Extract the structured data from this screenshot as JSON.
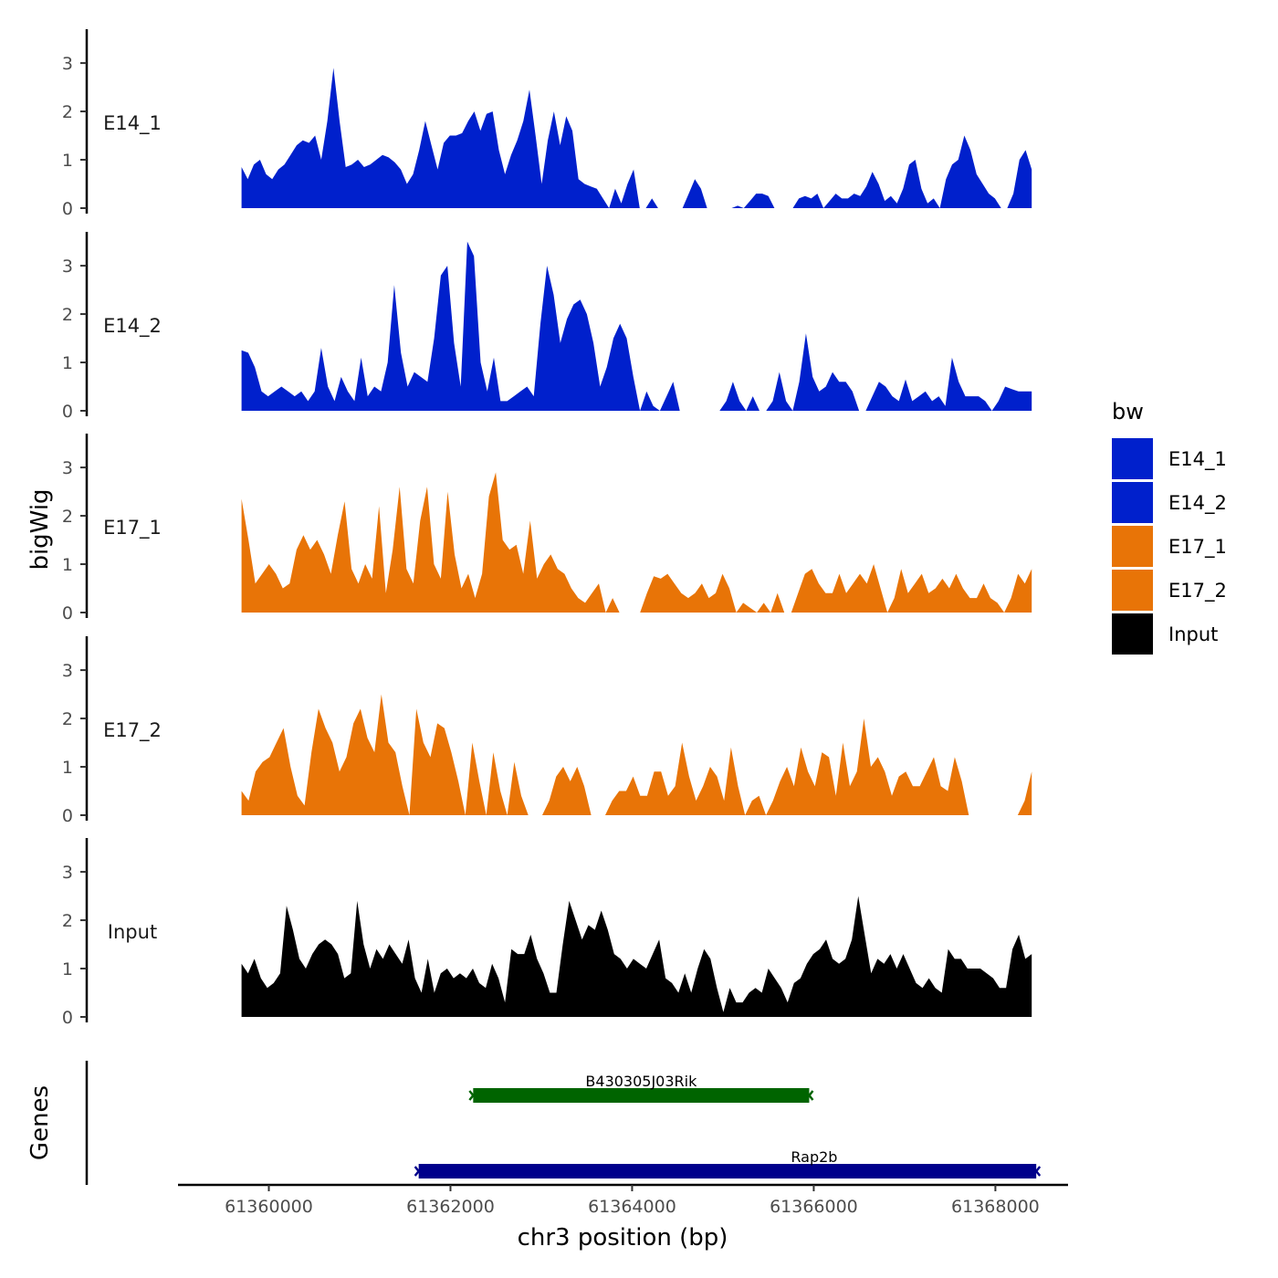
{
  "chart_data": {
    "type": "area",
    "ylabel": "bigWig",
    "xlabel": "chr3 position (bp)",
    "genes_label": "Genes",
    "ylim": [
      0,
      3.7
    ],
    "yticks": [
      0,
      1,
      2,
      3
    ],
    "xlim": [
      61359000,
      61368800
    ],
    "xticks": [
      61360000,
      61362000,
      61364000,
      61366000,
      61368000
    ],
    "xtick_labels": [
      "61360000",
      "61362000",
      "61364000",
      "61366000",
      "61368000"
    ],
    "x_start": 61359700,
    "x_end": 61368400,
    "legend": {
      "title": "bw",
      "entries": [
        {
          "label": "E14_1",
          "color": "#0020CC"
        },
        {
          "label": "E14_2",
          "color": "#0020CC"
        },
        {
          "label": "E17_1",
          "color": "#E87407"
        },
        {
          "label": "E17_2",
          "color": "#E87407"
        },
        {
          "label": "Input",
          "color": "#000000"
        }
      ]
    },
    "series": [
      {
        "name": "E14_1",
        "color": "#0020CC",
        "values": [
          0.85,
          0.6,
          0.9,
          1.0,
          0.7,
          0.6,
          0.8,
          0.9,
          1.1,
          1.3,
          1.4,
          1.35,
          1.5,
          1.0,
          1.8,
          2.9,
          1.8,
          0.85,
          0.9,
          1.0,
          0.85,
          0.9,
          1.0,
          1.1,
          1.05,
          0.95,
          0.8,
          0.5,
          0.7,
          1.2,
          1.8,
          1.3,
          0.8,
          1.35,
          1.5,
          1.5,
          1.55,
          1.8,
          2.0,
          1.6,
          1.95,
          2.0,
          1.2,
          0.7,
          1.1,
          1.4,
          1.8,
          2.45,
          1.5,
          0.5,
          1.4,
          2.0,
          1.3,
          1.9,
          1.6,
          0.6,
          0.5,
          0.45,
          0.4,
          0.2,
          0.0,
          0.4,
          0.1,
          0.5,
          0.8,
          0.0,
          0.0,
          0.2,
          0.0,
          0.0,
          0.0,
          0.0,
          0.0,
          0.3,
          0.6,
          0.4,
          0.0,
          0.0,
          0.0,
          0.0,
          0.0,
          0.05,
          0.0,
          0.15,
          0.3,
          0.3,
          0.25,
          0.0,
          0.0,
          0.0,
          0.0,
          0.2,
          0.25,
          0.2,
          0.3,
          0.0,
          0.15,
          0.3,
          0.2,
          0.2,
          0.3,
          0.25,
          0.45,
          0.75,
          0.5,
          0.15,
          0.25,
          0.1,
          0.4,
          0.9,
          1.0,
          0.4,
          0.1,
          0.2,
          0.0,
          0.6,
          0.9,
          1.0,
          1.5,
          1.2,
          0.7,
          0.5,
          0.3,
          0.2,
          0.0,
          0.0,
          0.3,
          1.0,
          1.2,
          0.8
        ]
      },
      {
        "name": "E14_2",
        "color": "#0020CC",
        "values": [
          1.25,
          1.2,
          0.9,
          0.4,
          0.3,
          0.4,
          0.5,
          0.4,
          0.3,
          0.4,
          0.2,
          0.4,
          1.3,
          0.5,
          0.2,
          0.7,
          0.4,
          0.2,
          1.1,
          0.3,
          0.5,
          0.4,
          1.0,
          2.6,
          1.2,
          0.5,
          0.8,
          0.7,
          0.6,
          1.5,
          2.8,
          3.0,
          1.4,
          0.5,
          3.5,
          3.2,
          1.0,
          0.4,
          1.1,
          0.2,
          0.2,
          0.3,
          0.4,
          0.5,
          0.3,
          1.8,
          3.0,
          2.4,
          1.4,
          1.9,
          2.2,
          2.3,
          2.0,
          1.4,
          0.5,
          0.9,
          1.5,
          1.8,
          1.5,
          0.7,
          0.0,
          0.4,
          0.1,
          0.0,
          0.3,
          0.6,
          0.0,
          0.0,
          0.0,
          0.0,
          0.0,
          0.0,
          0.0,
          0.2,
          0.6,
          0.2,
          0.0,
          0.3,
          0.0,
          0.0,
          0.2,
          0.8,
          0.2,
          0.0,
          0.6,
          1.6,
          0.7,
          0.4,
          0.5,
          0.8,
          0.6,
          0.6,
          0.4,
          0.0,
          0.0,
          0.3,
          0.6,
          0.5,
          0.3,
          0.2,
          0.65,
          0.2,
          0.3,
          0.4,
          0.2,
          0.3,
          0.1,
          1.1,
          0.6,
          0.3,
          0.3,
          0.3,
          0.2,
          0.0,
          0.2,
          0.5,
          0.45,
          0.4,
          0.4,
          0.4
        ]
      },
      {
        "name": "E17_1",
        "color": "#E87407",
        "values": [
          2.35,
          1.5,
          0.6,
          0.8,
          1.0,
          0.8,
          0.5,
          0.6,
          1.3,
          1.6,
          1.3,
          1.5,
          1.2,
          0.8,
          1.6,
          2.3,
          0.9,
          0.6,
          1.0,
          0.7,
          2.2,
          0.4,
          1.3,
          2.6,
          0.9,
          0.6,
          1.9,
          2.6,
          1.0,
          0.7,
          2.5,
          1.2,
          0.5,
          0.8,
          0.3,
          0.8,
          2.4,
          2.9,
          1.5,
          1.3,
          1.4,
          0.8,
          1.9,
          0.7,
          1.0,
          1.2,
          0.9,
          0.8,
          0.5,
          0.3,
          0.2,
          0.4,
          0.6,
          0.0,
          0.3,
          0.0,
          0.0,
          0.0,
          0.0,
          0.4,
          0.75,
          0.7,
          0.8,
          0.6,
          0.4,
          0.3,
          0.4,
          0.6,
          0.3,
          0.4,
          0.8,
          0.5,
          0.0,
          0.2,
          0.1,
          0.0,
          0.2,
          0.0,
          0.4,
          0.0,
          0.0,
          0.4,
          0.8,
          0.9,
          0.6,
          0.4,
          0.4,
          0.8,
          0.4,
          0.6,
          0.8,
          0.6,
          1.0,
          0.5,
          0.0,
          0.3,
          0.9,
          0.4,
          0.6,
          0.8,
          0.4,
          0.5,
          0.7,
          0.5,
          0.8,
          0.5,
          0.3,
          0.3,
          0.6,
          0.3,
          0.2,
          0.0,
          0.3,
          0.8,
          0.6,
          0.9
        ]
      },
      {
        "name": "E17_2",
        "color": "#E87407",
        "values": [
          0.5,
          0.3,
          0.9,
          1.1,
          1.2,
          1.5,
          1.8,
          1.0,
          0.4,
          0.2,
          1.3,
          2.2,
          1.8,
          1.5,
          0.9,
          1.2,
          1.9,
          2.2,
          1.6,
          1.3,
          2.5,
          1.5,
          1.3,
          0.6,
          0.0,
          2.2,
          1.5,
          1.2,
          1.9,
          1.8,
          1.3,
          0.7,
          0.0,
          1.5,
          0.7,
          0.0,
          1.3,
          0.5,
          0.0,
          1.1,
          0.4,
          0.0,
          0.0,
          0.0,
          0.3,
          0.8,
          1.0,
          0.7,
          1.0,
          0.6,
          0.0,
          0.0,
          0.0,
          0.3,
          0.5,
          0.5,
          0.8,
          0.4,
          0.4,
          0.9,
          0.9,
          0.4,
          0.6,
          1.5,
          0.8,
          0.3,
          0.6,
          1.0,
          0.8,
          0.3,
          1.4,
          0.6,
          0.0,
          0.3,
          0.4,
          0.0,
          0.3,
          0.7,
          1.0,
          0.6,
          1.4,
          0.9,
          0.6,
          1.3,
          1.2,
          0.4,
          1.5,
          0.6,
          0.9,
          2.0,
          1.0,
          1.2,
          0.9,
          0.4,
          0.8,
          0.9,
          0.6,
          0.6,
          0.9,
          1.2,
          0.6,
          0.5,
          1.2,
          0.7,
          0.0,
          0.0,
          0.0,
          0.0,
          0.0,
          0.0,
          0.0,
          0.0,
          0.3,
          0.9
        ]
      },
      {
        "name": "Input",
        "color": "#000000",
        "values": [
          1.1,
          0.9,
          1.2,
          0.8,
          0.6,
          0.7,
          0.9,
          2.3,
          1.8,
          1.2,
          1.0,
          1.3,
          1.5,
          1.6,
          1.5,
          1.3,
          0.8,
          0.9,
          2.4,
          1.5,
          1.0,
          1.4,
          1.2,
          1.5,
          1.3,
          1.1,
          1.6,
          0.8,
          0.5,
          1.2,
          0.5,
          0.9,
          1.0,
          0.8,
          0.9,
          0.8,
          1.0,
          0.7,
          0.6,
          1.1,
          0.8,
          0.3,
          1.4,
          1.3,
          1.3,
          1.7,
          1.2,
          0.9,
          0.5,
          0.5,
          1.5,
          2.4,
          2.0,
          1.6,
          1.9,
          1.8,
          2.2,
          1.8,
          1.3,
          1.2,
          1.0,
          1.2,
          1.1,
          1.0,
          1.3,
          1.6,
          0.8,
          0.7,
          0.5,
          0.9,
          0.5,
          1.0,
          1.4,
          1.2,
          0.6,
          0.1,
          0.6,
          0.3,
          0.3,
          0.5,
          0.6,
          0.5,
          1.0,
          0.8,
          0.6,
          0.3,
          0.7,
          0.8,
          1.1,
          1.3,
          1.4,
          1.6,
          1.2,
          1.1,
          1.2,
          1.6,
          2.5,
          1.7,
          0.9,
          1.2,
          1.1,
          1.3,
          1.0,
          1.3,
          1.0,
          0.7,
          0.6,
          0.8,
          0.6,
          0.5,
          1.4,
          1.2,
          1.2,
          1.0,
          1.0,
          1.0,
          0.9,
          0.8,
          0.6,
          0.6,
          1.4,
          1.7,
          1.2,
          1.3
        ]
      }
    ],
    "genes": [
      {
        "name": "B430305J03Rik",
        "start": 61362250,
        "end": 61365950,
        "color": "#006400",
        "lane": 0
      },
      {
        "name": "Rap2b",
        "start": 61361650,
        "end": 61368450,
        "color": "#00008B",
        "lane": 1
      }
    ]
  }
}
